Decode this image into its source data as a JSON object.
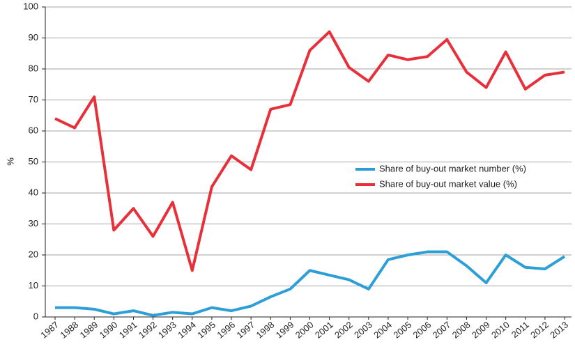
{
  "chart_data": {
    "type": "line",
    "ylabel": "%",
    "categories": [
      "1987",
      "1988",
      "1989",
      "1990",
      "1991",
      "1992",
      "1993",
      "1994",
      "1995",
      "1996",
      "1997",
      "1998",
      "1999",
      "2000",
      "2001",
      "2002",
      "2003",
      "2004",
      "2005",
      "2006",
      "2007",
      "2008",
      "2009",
      "2010",
      "2011",
      "2012",
      "2013"
    ],
    "series": [
      {
        "name": "Share of buy-out market number (%)",
        "color": "#2e9fd6",
        "values": [
          3,
          3,
          2.5,
          1,
          2,
          0.5,
          1.5,
          1,
          3,
          2,
          3.5,
          6.5,
          9,
          15,
          13.5,
          12,
          9,
          18.5,
          20,
          21,
          21,
          16.5,
          11,
          20,
          16,
          15.5,
          19.5
        ]
      },
      {
        "name": "Share of buy-out market value (%)",
        "color": "#e8303a",
        "values": [
          64,
          61,
          71,
          28,
          35,
          26,
          37,
          15,
          42,
          52,
          47.5,
          67,
          68.5,
          86,
          92,
          80.5,
          76,
          84.5,
          83,
          84,
          89.5,
          79,
          74,
          85.5,
          73.5,
          78,
          79
        ]
      }
    ],
    "ylim": [
      0,
      100
    ],
    "yticks": [
      0,
      10,
      20,
      30,
      40,
      50,
      60,
      70,
      80,
      90,
      100
    ],
    "grid": true,
    "legend": "right"
  }
}
